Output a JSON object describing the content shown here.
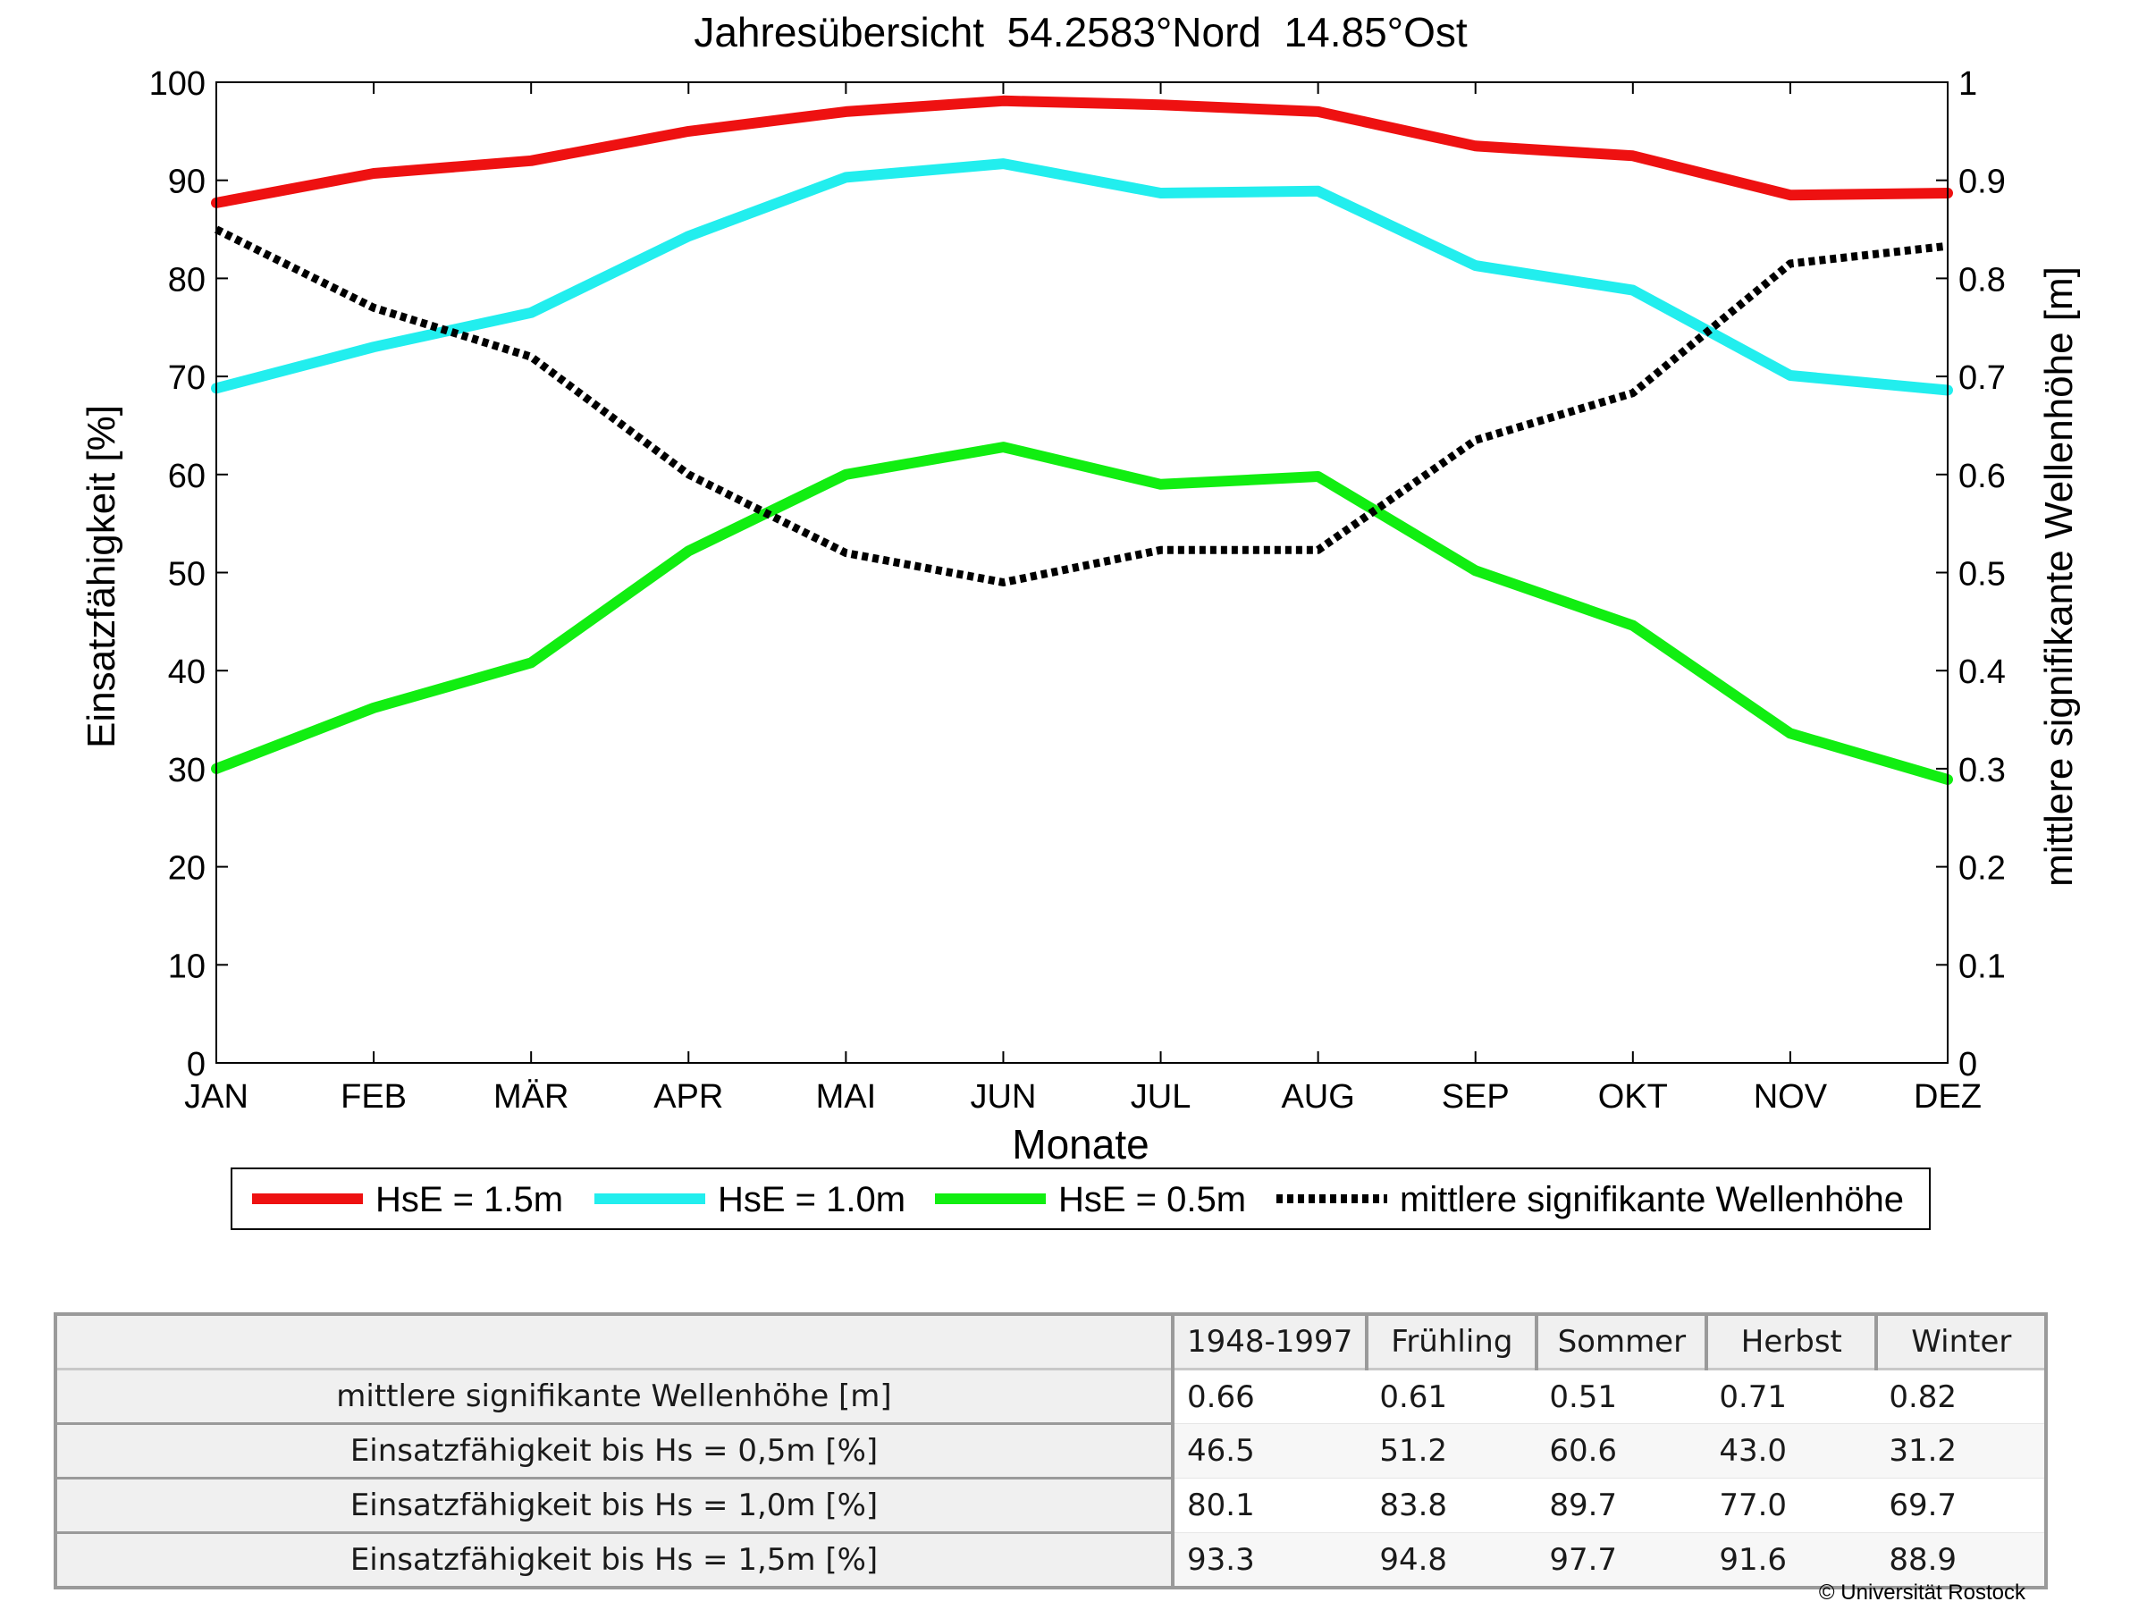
{
  "chart_data": {
    "type": "line",
    "title": "Jahresübersicht  54.2583°Nord  14.85°Ost",
    "xlabel": "Monate",
    "ylabel": "Einsatzfähigkeit [%]",
    "y2label": "mittlere signifikante Wellenhöhe [m]",
    "categories": [
      "JAN",
      "FEB",
      "MÄR",
      "APR",
      "MAI",
      "JUN",
      "JUL",
      "AUG",
      "SEP",
      "OKT",
      "NOV",
      "DEZ"
    ],
    "ylim": [
      0,
      100
    ],
    "yticks": [
      "0",
      "10",
      "20",
      "30",
      "40",
      "50",
      "60",
      "70",
      "80",
      "90",
      "100"
    ],
    "y2lim": [
      0,
      1
    ],
    "y2ticks": [
      "0",
      "0.1",
      "0.2",
      "0.3",
      "0.4",
      "0.5",
      "0.6",
      "0.7",
      "0.8",
      "0.9",
      "1"
    ],
    "grid": false,
    "legend_position": "bottom",
    "series": [
      {
        "name": "HsE = 1.5m",
        "color": "#ee1111",
        "axis": "left",
        "style": "solid",
        "values": [
          87.7,
          90.7,
          92.0,
          95.0,
          97.0,
          98.1,
          97.7,
          97.0,
          93.5,
          92.5,
          88.5,
          88.7
        ]
      },
      {
        "name": "HsE = 1.0m",
        "color": "#22eeee",
        "axis": "left",
        "style": "solid",
        "values": [
          68.8,
          73.0,
          76.5,
          84.3,
          90.3,
          91.7,
          88.7,
          88.9,
          81.3,
          78.8,
          70.1,
          68.6
        ]
      },
      {
        "name": "HsE = 0.5m",
        "color": "#11ee11",
        "axis": "left",
        "style": "solid",
        "values": [
          30.0,
          36.2,
          40.8,
          52.2,
          60.0,
          62.8,
          59.0,
          59.8,
          50.2,
          44.6,
          33.6,
          28.9
        ]
      },
      {
        "name": "mittlere signifikante Wellenhöhe",
        "color": "#000000",
        "axis": "right",
        "style": "dotted",
        "values": [
          0.85,
          0.77,
          0.72,
          0.6,
          0.52,
          0.49,
          0.523,
          0.523,
          0.635,
          0.683,
          0.815,
          0.833
        ]
      }
    ]
  },
  "table": {
    "columns": [
      "1948-1997",
      "Frühling",
      "Sommer",
      "Herbst",
      "Winter"
    ],
    "rows": [
      {
        "label": "mittlere signifikante Wellenhöhe [m]",
        "values": [
          "0.66",
          "0.61",
          "0.51",
          "0.71",
          "0.82"
        ]
      },
      {
        "label": "Einsatzfähigkeit bis Hs = 0,5m [%]",
        "values": [
          "46.5",
          "51.2",
          "60.6",
          "43.0",
          "31.2"
        ]
      },
      {
        "label": "Einsatzfähigkeit bis Hs = 1,0m [%]",
        "values": [
          "80.1",
          "83.8",
          "89.7",
          "77.0",
          "69.7"
        ]
      },
      {
        "label": "Einsatzfähigkeit bis Hs = 1,5m [%]",
        "values": [
          "93.3",
          "94.8",
          "97.7",
          "91.6",
          "88.9"
        ]
      }
    ]
  },
  "footer": {
    "copyright": "© Universität Rostock"
  }
}
